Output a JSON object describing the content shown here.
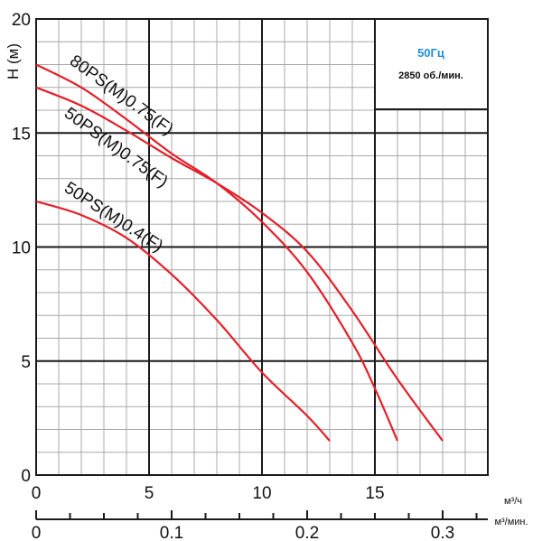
{
  "chart_data": {
    "type": "line",
    "ylabel": "H (м)",
    "x_units_primary": "м³/ч",
    "x_units_secondary": "м³/мин.",
    "xlim": [
      0,
      20
    ],
    "ylim": [
      0,
      20
    ],
    "x_ticks": [
      "0",
      "5",
      "10",
      "15"
    ],
    "y_ticks": [
      "0",
      "5",
      "10",
      "15",
      "20"
    ],
    "x2_ticks": [
      "0",
      "0.1",
      "0.2",
      "0.3"
    ],
    "grid": true,
    "info_box": {
      "frequency": "50Гц",
      "speed": "2850 об./мин."
    },
    "series": [
      {
        "name": "80PS(M)0.75(F)",
        "x": [
          0,
          2,
          4,
          6,
          8,
          10,
          12,
          14,
          16,
          18
        ],
        "y": [
          17,
          16.2,
          15.1,
          13.9,
          12.8,
          11.5,
          9.8,
          7.2,
          4.2,
          1.5
        ]
      },
      {
        "name": "50PS(M)0.75(F)",
        "x": [
          0,
          2,
          4,
          6,
          8,
          10,
          12,
          14,
          15,
          16
        ],
        "y": [
          18,
          17,
          15.6,
          14.1,
          12.8,
          11.1,
          8.9,
          5.8,
          3.8,
          1.5
        ]
      },
      {
        "name": "50PS(M)0.4(F)",
        "x": [
          0,
          2,
          4,
          6,
          8,
          10,
          12,
          13
        ],
        "y": [
          12,
          11.4,
          10.4,
          8.8,
          6.8,
          4.5,
          2.6,
          1.5
        ]
      }
    ],
    "color": "#e3202a"
  }
}
